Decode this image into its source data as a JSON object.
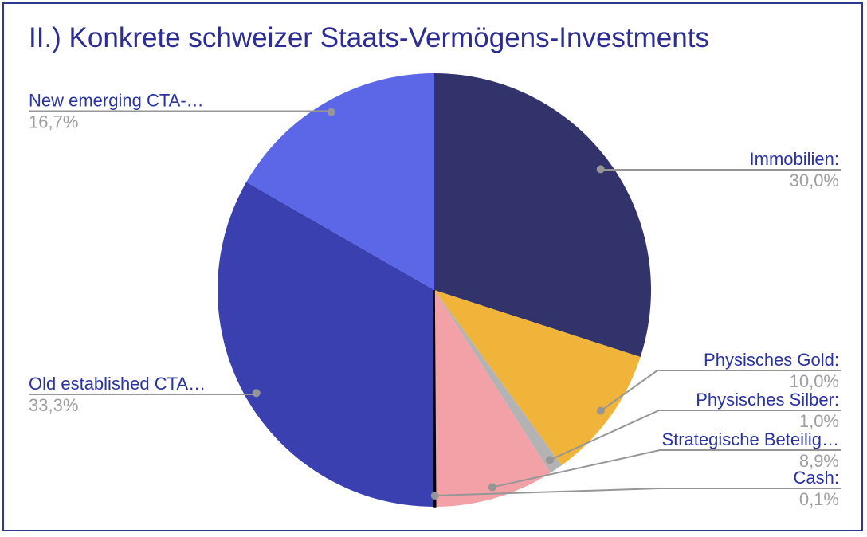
{
  "title": {
    "text": "II.) Konkrete schweizer Staats-Vermögens-Investments",
    "color": "#2c2d94"
  },
  "frame": {
    "border_color": "#2c3a8c"
  },
  "chart_data": {
    "type": "pie",
    "title": "II.) Konkrete schweizer Staats-Vermögens-Investments",
    "start_angle": 0,
    "direction": "clockwise",
    "legend_position": "outside-labels",
    "label_color": "#2933a2",
    "pct_color": "#9e9e9e",
    "line_color": "#969696",
    "slices": [
      {
        "label": "Immobilien:",
        "value": 30.0,
        "pct_label": "30,0%",
        "color": "#32336b"
      },
      {
        "label": "Physisches Gold:",
        "value": 10.0,
        "pct_label": "10,0%",
        "color": "#f0b43a"
      },
      {
        "label": "Physisches Silber:",
        "value": 1.0,
        "pct_label": "1,0%",
        "color": "#b3b3b3"
      },
      {
        "label": "Strategische Beteilig…",
        "value": 8.9,
        "pct_label": "8,9%",
        "color": "#f2a2a7"
      },
      {
        "label": "Cash:",
        "value": 0.1,
        "pct_label": "0,1%",
        "color": "#000000"
      },
      {
        "label": "Old established CTA…",
        "value": 33.3,
        "pct_label": "33,3%",
        "color": "#3a40b0"
      },
      {
        "label": "New emerging CTA-…",
        "value": 16.7,
        "pct_label": "16,7%",
        "color": "#5c67e8"
      }
    ]
  }
}
